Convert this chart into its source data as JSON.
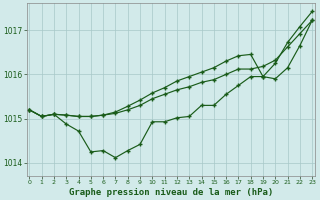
{
  "bg_color": "#d2eaea",
  "grid_color": "#a8c8c8",
  "line_color": "#1a5c1a",
  "title": "Graphe pression niveau de la mer (hPa)",
  "xlim": [
    -0.2,
    23.2
  ],
  "ylim": [
    1013.7,
    1017.6
  ],
  "yticks": [
    1014,
    1015,
    1016,
    1017
  ],
  "xticks": [
    0,
    1,
    2,
    3,
    4,
    5,
    6,
    7,
    8,
    9,
    10,
    11,
    12,
    13,
    14,
    15,
    16,
    17,
    18,
    19,
    20,
    21,
    22,
    23
  ],
  "line1_x": [
    0,
    1,
    2,
    3,
    4,
    5,
    6,
    7,
    8,
    9,
    10,
    11,
    12,
    13,
    14,
    15,
    16,
    17,
    18,
    19,
    20,
    21,
    22,
    23
  ],
  "line1_y": [
    1015.2,
    1015.05,
    1015.1,
    1015.08,
    1015.05,
    1015.05,
    1015.08,
    1015.12,
    1015.2,
    1015.3,
    1015.45,
    1015.55,
    1015.65,
    1015.72,
    1015.82,
    1015.88,
    1016.0,
    1016.12,
    1016.12,
    1016.18,
    1016.32,
    1016.62,
    1016.92,
    1017.22
  ],
  "line2_x": [
    0,
    1,
    2,
    3,
    4,
    5,
    6,
    7,
    8,
    9,
    10,
    11,
    12,
    13,
    14,
    15,
    16,
    17,
    18,
    19,
    20,
    21,
    22,
    23
  ],
  "line2_y": [
    1015.2,
    1015.05,
    1015.1,
    1015.08,
    1015.05,
    1015.05,
    1015.08,
    1015.15,
    1015.28,
    1015.42,
    1015.58,
    1015.7,
    1015.85,
    1015.95,
    1016.05,
    1016.15,
    1016.3,
    1016.42,
    1016.45,
    1015.95,
    1015.9,
    1016.15,
    1016.65,
    1017.22
  ],
  "line3_x": [
    0,
    1,
    2,
    3,
    4,
    5,
    6,
    7,
    8,
    9,
    10,
    11,
    12,
    13,
    14,
    15,
    16,
    17,
    18,
    19,
    20,
    21,
    22,
    23
  ],
  "line3_y": [
    1015.2,
    1015.05,
    1015.1,
    1014.88,
    1014.72,
    1014.25,
    1014.28,
    1014.12,
    1014.28,
    1014.42,
    1014.93,
    1014.93,
    1015.02,
    1015.05,
    1015.3,
    1015.3,
    1015.55,
    1015.75,
    1015.95,
    1015.95,
    1016.25,
    1016.72,
    1017.08,
    1017.42
  ]
}
